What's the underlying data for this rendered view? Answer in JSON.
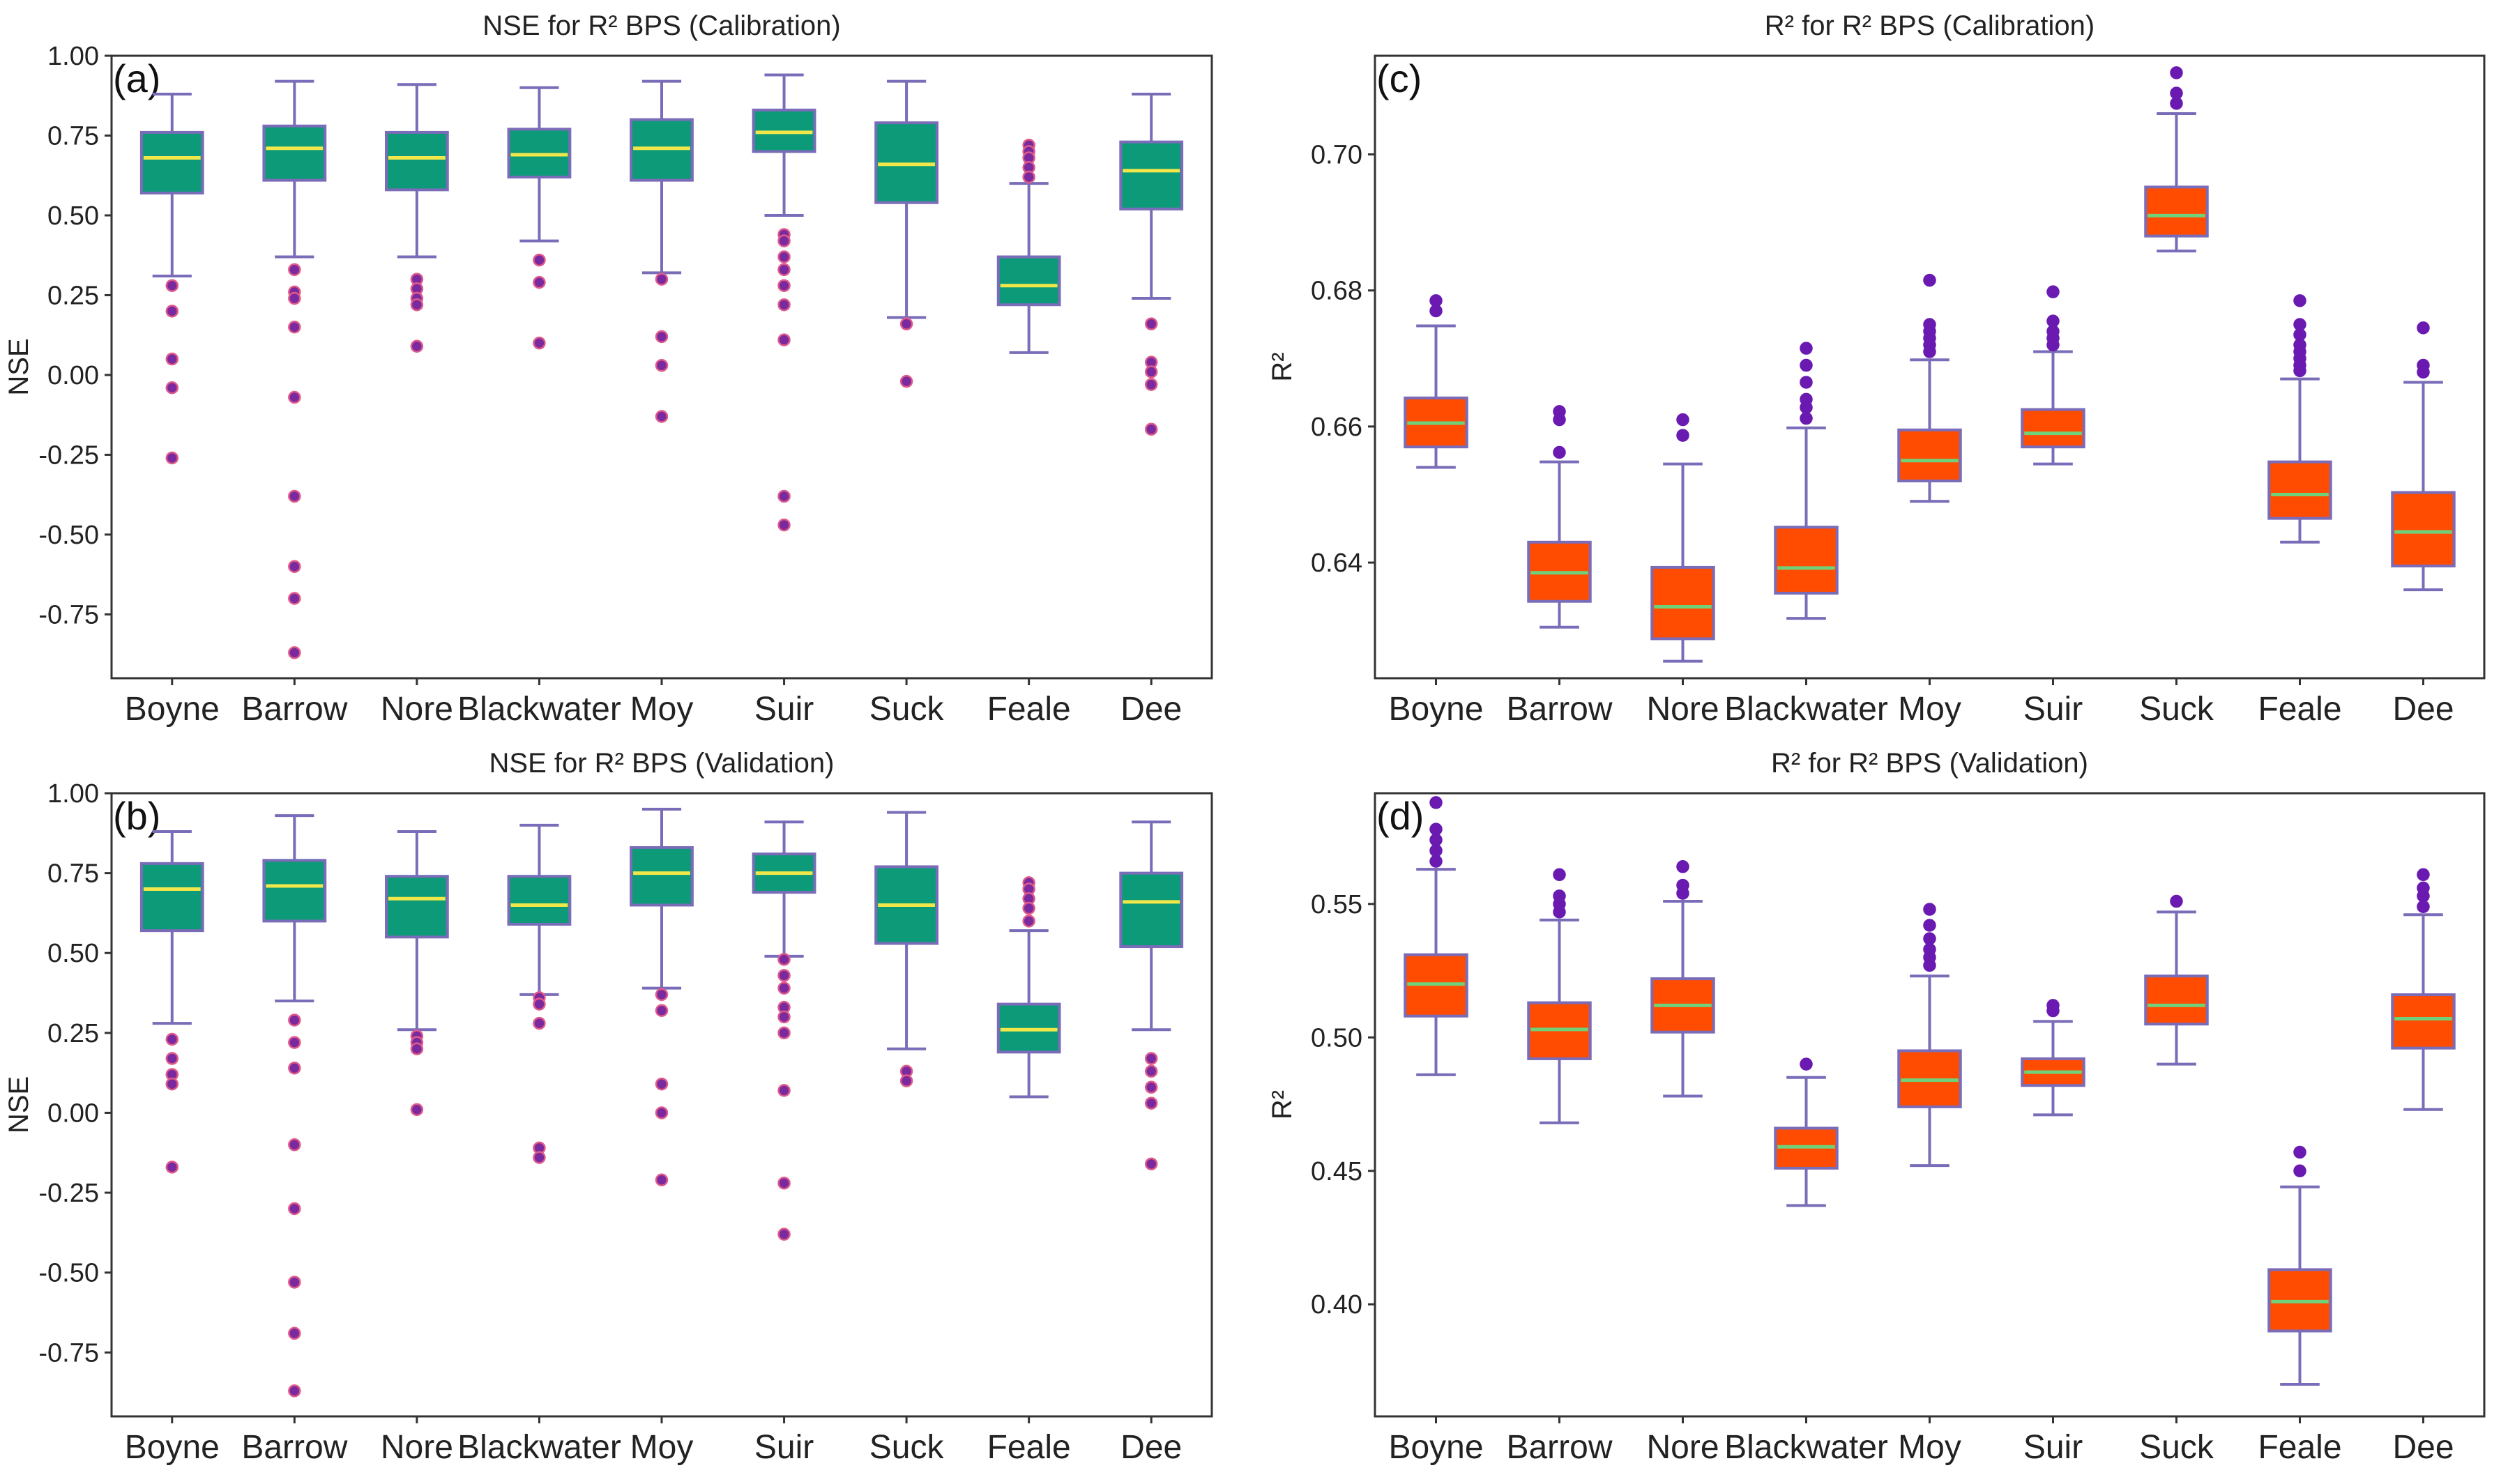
{
  "chart_data": [
    {
      "panel_label": "(a)",
      "type": "box",
      "title": "NSE for R² BPS (Calibration)",
      "xlabel": "",
      "ylabel": "NSE",
      "ylim": [
        -0.95,
        1.0
      ],
      "yticks": [
        1.0,
        0.75,
        0.5,
        0.25,
        0.0,
        -0.25,
        -0.5,
        -0.75
      ],
      "ytick_labels": [
        "1.00",
        "0.75",
        "0.50",
        "0.25",
        "0.00",
        "-0.25",
        "-0.50",
        "-0.75"
      ],
      "categories": [
        "Boyne",
        "Barrow",
        "Nore",
        "Blackwater",
        "Moy",
        "Suir",
        "Suck",
        "Feale",
        "Dee"
      ],
      "colors": {
        "box": "#0d9a78",
        "border": "#7a6cb8",
        "median": "#f2e74a",
        "whisker": "#7a6cb8",
        "outlier": "#7a2a9e",
        "outlier_edge": "#e05a8a"
      },
      "boxes": [
        {
          "lo": 0.31,
          "q1": 0.57,
          "med": 0.68,
          "q3": 0.76,
          "hi": 0.88,
          "outliers": [
            0.28,
            0.2,
            0.05,
            -0.04,
            -0.26
          ]
        },
        {
          "lo": 0.37,
          "q1": 0.61,
          "med": 0.71,
          "q3": 0.78,
          "hi": 0.92,
          "outliers": [
            0.33,
            0.26,
            0.24,
            0.15,
            -0.07,
            -0.38,
            -0.6,
            -0.7,
            -0.87
          ]
        },
        {
          "lo": 0.37,
          "q1": 0.58,
          "med": 0.68,
          "q3": 0.76,
          "hi": 0.91,
          "outliers": [
            0.3,
            0.27,
            0.24,
            0.22,
            0.09
          ]
        },
        {
          "lo": 0.42,
          "q1": 0.62,
          "med": 0.69,
          "q3": 0.77,
          "hi": 0.9,
          "outliers": [
            0.36,
            0.29,
            0.1
          ]
        },
        {
          "lo": 0.32,
          "q1": 0.61,
          "med": 0.71,
          "q3": 0.8,
          "hi": 0.92,
          "outliers": [
            0.3,
            0.12,
            0.03,
            -0.13
          ]
        },
        {
          "lo": 0.5,
          "q1": 0.7,
          "med": 0.76,
          "q3": 0.83,
          "hi": 0.94,
          "outliers": [
            0.44,
            0.42,
            0.37,
            0.33,
            0.28,
            0.22,
            0.11,
            -0.38,
            -0.47
          ]
        },
        {
          "lo": 0.18,
          "q1": 0.54,
          "med": 0.66,
          "q3": 0.79,
          "hi": 0.92,
          "outliers": [
            0.16,
            -0.02
          ]
        },
        {
          "lo": 0.07,
          "q1": 0.22,
          "med": 0.28,
          "q3": 0.37,
          "hi": 0.6,
          "outliers": [
            0.72,
            0.7,
            0.68,
            0.65,
            0.62
          ]
        },
        {
          "lo": 0.24,
          "q1": 0.52,
          "med": 0.64,
          "q3": 0.73,
          "hi": 0.88,
          "outliers": [
            0.16,
            0.04,
            0.01,
            -0.03,
            -0.17
          ]
        }
      ]
    },
    {
      "panel_label": "(c)",
      "type": "box",
      "title": "R² for R² BPS (Calibration)",
      "xlabel": "",
      "ylabel": "R²",
      "ylim": [
        0.623,
        0.7145
      ],
      "yticks": [
        0.7,
        0.68,
        0.66,
        0.64
      ],
      "ytick_labels": [
        "0.70",
        "0.68",
        "0.66",
        "0.64"
      ],
      "categories": [
        "Boyne",
        "Barrow",
        "Nore",
        "Blackwater",
        "Moy",
        "Suir",
        "Suck",
        "Feale",
        "Dee"
      ],
      "colors": {
        "box": "#ff4c00",
        "border": "#7a6cb8",
        "median": "#6fd27a",
        "whisker": "#7a6cb8",
        "outlier": "#6a1ab0",
        "outlier_edge": "#6a1ab0"
      },
      "boxes": [
        {
          "lo": 0.654,
          "q1": 0.657,
          "med": 0.6605,
          "q3": 0.6642,
          "hi": 0.6748,
          "outliers": [
            0.677,
            0.6785
          ]
        },
        {
          "lo": 0.6305,
          "q1": 0.6343,
          "med": 0.6385,
          "q3": 0.643,
          "hi": 0.6548,
          "outliers": [
            0.6562,
            0.661,
            0.6622
          ]
        },
        {
          "lo": 0.6255,
          "q1": 0.6288,
          "med": 0.6335,
          "q3": 0.6393,
          "hi": 0.6545,
          "outliers": [
            0.6587,
            0.661
          ]
        },
        {
          "lo": 0.6318,
          "q1": 0.6355,
          "med": 0.6392,
          "q3": 0.6452,
          "hi": 0.6598,
          "outliers": [
            0.6612,
            0.6628,
            0.664,
            0.6665,
            0.669,
            0.6715
          ]
        },
        {
          "lo": 0.649,
          "q1": 0.652,
          "med": 0.655,
          "q3": 0.6595,
          "hi": 0.6698,
          "outliers": [
            0.671,
            0.672,
            0.673,
            0.674,
            0.675,
            0.6815
          ]
        },
        {
          "lo": 0.6545,
          "q1": 0.657,
          "med": 0.659,
          "q3": 0.6625,
          "hi": 0.671,
          "outliers": [
            0.672,
            0.673,
            0.674,
            0.6755,
            0.6798
          ]
        },
        {
          "lo": 0.6858,
          "q1": 0.688,
          "med": 0.691,
          "q3": 0.6952,
          "hi": 0.706,
          "outliers": [
            0.7075,
            0.709,
            0.712
          ]
        },
        {
          "lo": 0.643,
          "q1": 0.6465,
          "med": 0.65,
          "q3": 0.6548,
          "hi": 0.667,
          "outliers": [
            0.6682,
            0.669,
            0.67,
            0.671,
            0.672,
            0.6735,
            0.675,
            0.6785
          ]
        },
        {
          "lo": 0.636,
          "q1": 0.6395,
          "med": 0.6445,
          "q3": 0.6503,
          "hi": 0.6665,
          "outliers": [
            0.668,
            0.669,
            0.6745
          ]
        }
      ]
    },
    {
      "panel_label": "(b)",
      "type": "box",
      "title": "NSE for R² BPS (Validation)",
      "xlabel": "",
      "ylabel": "NSE",
      "ylim": [
        -0.95,
        1.0
      ],
      "yticks": [
        1.0,
        0.75,
        0.5,
        0.25,
        0.0,
        -0.25,
        -0.5,
        -0.75
      ],
      "ytick_labels": [
        "1.00",
        "0.75",
        "0.50",
        "0.25",
        "0.00",
        "-0.25",
        "-0.50",
        "-0.75"
      ],
      "categories": [
        "Boyne",
        "Barrow",
        "Nore",
        "Blackwater",
        "Moy",
        "Suir",
        "Suck",
        "Feale",
        "Dee"
      ],
      "colors": {
        "box": "#0d9a78",
        "border": "#7a6cb8",
        "median": "#f2e74a",
        "whisker": "#7a6cb8",
        "outlier": "#7a2a9e",
        "outlier_edge": "#e05a8a"
      },
      "boxes": [
        {
          "lo": 0.28,
          "q1": 0.57,
          "med": 0.7,
          "q3": 0.78,
          "hi": 0.88,
          "outliers": [
            0.23,
            0.17,
            0.12,
            0.09,
            -0.17
          ]
        },
        {
          "lo": 0.35,
          "q1": 0.6,
          "med": 0.71,
          "q3": 0.79,
          "hi": 0.93,
          "outliers": [
            0.29,
            0.22,
            0.14,
            -0.1,
            -0.3,
            -0.53,
            -0.69,
            -0.87
          ]
        },
        {
          "lo": 0.26,
          "q1": 0.55,
          "med": 0.67,
          "q3": 0.74,
          "hi": 0.88,
          "outliers": [
            0.24,
            0.22,
            0.2,
            0.01
          ]
        },
        {
          "lo": 0.37,
          "q1": 0.59,
          "med": 0.65,
          "q3": 0.74,
          "hi": 0.9,
          "outliers": [
            0.36,
            0.34,
            0.28,
            -0.11,
            -0.14
          ]
        },
        {
          "lo": 0.39,
          "q1": 0.65,
          "med": 0.75,
          "q3": 0.83,
          "hi": 0.95,
          "outliers": [
            0.37,
            0.32,
            0.09,
            0.0,
            -0.21
          ]
        },
        {
          "lo": 0.49,
          "q1": 0.69,
          "med": 0.75,
          "q3": 0.81,
          "hi": 0.91,
          "outliers": [
            0.48,
            0.43,
            0.39,
            0.33,
            0.3,
            0.25,
            0.07,
            -0.22,
            -0.38
          ]
        },
        {
          "lo": 0.2,
          "q1": 0.53,
          "med": 0.65,
          "q3": 0.77,
          "hi": 0.94,
          "outliers": [
            0.13,
            0.1
          ]
        },
        {
          "lo": 0.05,
          "q1": 0.19,
          "med": 0.26,
          "q3": 0.34,
          "hi": 0.57,
          "outliers": [
            0.72,
            0.7,
            0.67,
            0.64,
            0.6
          ]
        },
        {
          "lo": 0.26,
          "q1": 0.52,
          "med": 0.66,
          "q3": 0.75,
          "hi": 0.91,
          "outliers": [
            0.17,
            0.13,
            0.08,
            0.03,
            -0.16
          ]
        }
      ]
    },
    {
      "panel_label": "(d)",
      "type": "box",
      "title": "R² for R² BPS (Validation)",
      "xlabel": "",
      "ylabel": "R²",
      "ylim": [
        0.358,
        0.5915
      ],
      "yticks": [
        0.55,
        0.5,
        0.45,
        0.4
      ],
      "ytick_labels": [
        "0.55",
        "0.50",
        "0.45",
        "0.40"
      ],
      "categories": [
        "Boyne",
        "Barrow",
        "Nore",
        "Blackwater",
        "Moy",
        "Suir",
        "Suck",
        "Feale",
        "Dee"
      ],
      "colors": {
        "box": "#ff4c00",
        "border": "#7a6cb8",
        "median": "#6fd27a",
        "whisker": "#7a6cb8",
        "outlier": "#6a1ab0",
        "outlier_edge": "#6a1ab0"
      },
      "boxes": [
        {
          "lo": 0.486,
          "q1": 0.508,
          "med": 0.52,
          "q3": 0.531,
          "hi": 0.563,
          "outliers": [
            0.566,
            0.57,
            0.574,
            0.578,
            0.588
          ]
        },
        {
          "lo": 0.468,
          "q1": 0.492,
          "med": 0.503,
          "q3": 0.513,
          "hi": 0.544,
          "outliers": [
            0.547,
            0.55,
            0.553,
            0.561
          ]
        },
        {
          "lo": 0.478,
          "q1": 0.502,
          "med": 0.512,
          "q3": 0.522,
          "hi": 0.551,
          "outliers": [
            0.554,
            0.557,
            0.564
          ]
        },
        {
          "lo": 0.437,
          "q1": 0.451,
          "med": 0.459,
          "q3": 0.466,
          "hi": 0.485,
          "outliers": [
            0.49
          ]
        },
        {
          "lo": 0.452,
          "q1": 0.474,
          "med": 0.484,
          "q3": 0.495,
          "hi": 0.523,
          "outliers": [
            0.527,
            0.53,
            0.533,
            0.537,
            0.542,
            0.548
          ]
        },
        {
          "lo": 0.471,
          "q1": 0.482,
          "med": 0.487,
          "q3": 0.492,
          "hi": 0.506,
          "outliers": [
            0.51,
            0.512
          ]
        },
        {
          "lo": 0.49,
          "q1": 0.505,
          "med": 0.512,
          "q3": 0.523,
          "hi": 0.547,
          "outliers": [
            0.551
          ]
        },
        {
          "lo": 0.37,
          "q1": 0.39,
          "med": 0.401,
          "q3": 0.413,
          "hi": 0.444,
          "outliers": [
            0.45,
            0.457
          ]
        },
        {
          "lo": 0.473,
          "q1": 0.496,
          "med": 0.507,
          "q3": 0.516,
          "hi": 0.546,
          "outliers": [
            0.549,
            0.553,
            0.556,
            0.561
          ]
        }
      ]
    }
  ]
}
